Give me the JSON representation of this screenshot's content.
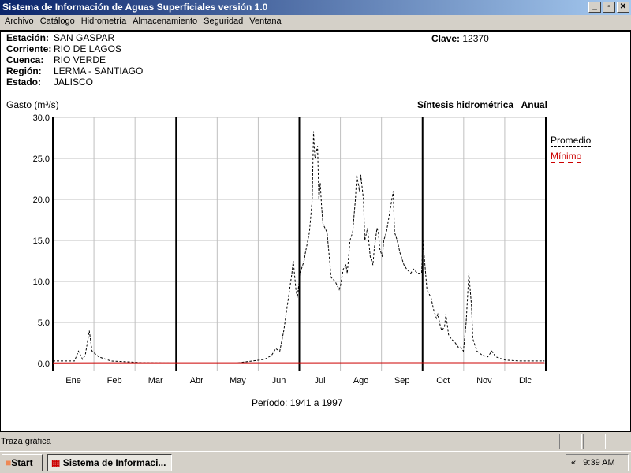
{
  "window": {
    "title": "Sistema de Información de Aguas Superficiales  versión 1.0",
    "buttons": [
      "_",
      "▫",
      "✕"
    ]
  },
  "menu": [
    "Archivo",
    "Catálogo",
    "Hidrometría",
    "Almacenamiento",
    "Seguridad",
    "Ventana"
  ],
  "station": [
    {
      "label": "Estación:",
      "value": "SAN GASPAR"
    },
    {
      "label": "Corriente:",
      "value": "RIO DE LAGOS"
    },
    {
      "label": "Cuenca:",
      "value": "RIO VERDE"
    },
    {
      "label": "Región:",
      "value": "LERMA - SANTIAGO"
    },
    {
      "label": "Estado:",
      "value": "JALISCO"
    }
  ],
  "clave": {
    "label": "Clave:",
    "value": "12370"
  },
  "synthesis": {
    "title": "Síntesis hidrométrica",
    "mode": "Anual"
  },
  "periodo": "Período:  1941 a 1997",
  "chart_data": {
    "type": "line",
    "ylabel": "Gasto (m³/s)",
    "ylim": [
      0,
      30
    ],
    "yticks": [
      "0.0",
      "5.0",
      "10.0",
      "15.0",
      "20.0",
      "25.0",
      "30.0"
    ],
    "xlabel_days": [
      1,
      365
    ],
    "categories": [
      "Ene",
      "Feb",
      "Mar",
      "Abr",
      "May",
      "Jun",
      "Jul",
      "Ago",
      "Sep",
      "Oct",
      "Nov",
      "Dic"
    ],
    "grid": true,
    "legend": "right",
    "series": [
      {
        "name": "Promedio",
        "color": "#000000",
        "style": "dashed",
        "x": [
          0,
          8,
          16,
          19,
          22,
          24,
          27,
          29,
          34,
          43,
          54,
          66,
          90,
          136,
          148,
          157,
          162,
          165,
          168,
          171,
          174,
          177,
          178,
          180,
          181,
          183,
          186,
          187,
          190,
          192,
          193,
          194,
          196,
          197,
          198,
          199,
          200,
          203,
          205,
          206,
          209,
          212,
          213,
          215,
          217,
          218,
          220,
          222,
          224,
          225,
          227,
          228,
          230,
          231,
          233,
          235,
          237,
          238,
          240,
          241,
          242,
          244,
          245,
          247,
          249,
          251,
          252,
          253,
          255,
          257,
          260,
          262,
          265,
          267,
          270,
          273,
          274,
          276,
          277,
          280,
          282,
          284,
          285,
          287,
          288,
          290,
          291,
          293,
          295,
          298,
          300,
          302,
          304,
          306,
          308,
          310,
          311,
          314,
          318,
          322,
          325,
          328,
          335,
          346,
          364
        ],
        "y": [
          0.3,
          0.3,
          0.3,
          1.5,
          0.5,
          1.0,
          4.0,
          1.5,
          0.8,
          0.3,
          0.2,
          0.1,
          0.05,
          0.05,
          0.3,
          0.5,
          1.0,
          1.8,
          1.5,
          4,
          7.5,
          11,
          12.5,
          9,
          8,
          11,
          12.5,
          13.5,
          16,
          20,
          28.3,
          25,
          26.5,
          20,
          22,
          19,
          17,
          16,
          12.5,
          10.5,
          10,
          9,
          9.5,
          11.5,
          12,
          11,
          15,
          16,
          20,
          23,
          21,
          23,
          20,
          15,
          16.5,
          13,
          12,
          14,
          16.5,
          16,
          14,
          13,
          15,
          16,
          18,
          20,
          21,
          16,
          15,
          13.5,
          12,
          11.5,
          11,
          11.5,
          11,
          11,
          15,
          11,
          9,
          8,
          6.5,
          5.5,
          6,
          4.5,
          4,
          4.5,
          6,
          3.5,
          3,
          2.5,
          2,
          2,
          1.5,
          5,
          11,
          7,
          3,
          1.5,
          1,
          0.8,
          1.5,
          0.8,
          0.4,
          0.3,
          0.3
        ]
      },
      {
        "name": "Mínimo",
        "color": "#cc0000",
        "style": "solid",
        "x": [
          0,
          364
        ],
        "y": [
          0.03,
          0.05
        ]
      }
    ]
  },
  "status": {
    "text": "Traza gráfica"
  },
  "taskbar": {
    "start": "Start",
    "task": "Sistema de Informaci...",
    "tray_arrow": "«",
    "clock": "9:39 AM"
  }
}
